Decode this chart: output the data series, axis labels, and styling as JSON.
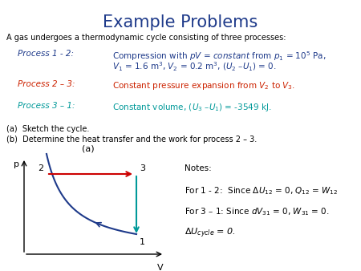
{
  "title": "Example Problems",
  "title_color": "#1E3A8A",
  "title_fontsize": 15,
  "bg_color": "#FFFFFF",
  "intro_text": "A gas undergoes a thermodynamic cycle consisting of three processes:",
  "process_labels": [
    "Process 1 - 2:",
    "Process 2 – 3:",
    "Process 3 – 1:"
  ],
  "process_label_colors": [
    "#1E3A8A",
    "#CC2200",
    "#009999"
  ],
  "process_desc1_line1": "Compression with $pV$ = $constant$ from $p_1$ = 10$^5$ Pa,",
  "process_desc1_line2": "$V_1$ = 1.6 m$^3$, $V_2$ = 0.2 m$^3$, ($U_2$ –$U_1$) = 0.",
  "process_desc2": "Constant pressure expansion from $V_2$ to $V_3$.",
  "process_desc3": "Constant volume, ($U_3$ –$U_1$) = -3549 kJ.",
  "process_desc_colors": [
    "#1E3A8A",
    "#CC2200",
    "#009999"
  ],
  "ab_line1": "(a)  Sketch the cycle.",
  "ab_line2": "(b)  Determine the heat transfer and the work for process 2 – 3.",
  "diagram_label": "(a)",
  "p_label": "p",
  "v_label": "V",
  "notes_title": "Notes:",
  "note1": "For 1 - 2:  Since $\\Delta U_{12}$ = 0, $Q_{12}$ = $W_{12}$",
  "note2": "For 3 – 1: Since $dV_{31}$ = 0, $W_{31}$ = 0.",
  "note3": "$\\Delta U_{cycle}$ = 0.",
  "curve_color": "#1E3A8A",
  "arrow23_color": "#CC0000",
  "arrow31_color": "#009999",
  "text_fontsize": 7.5,
  "label_fontsize": 7.5
}
